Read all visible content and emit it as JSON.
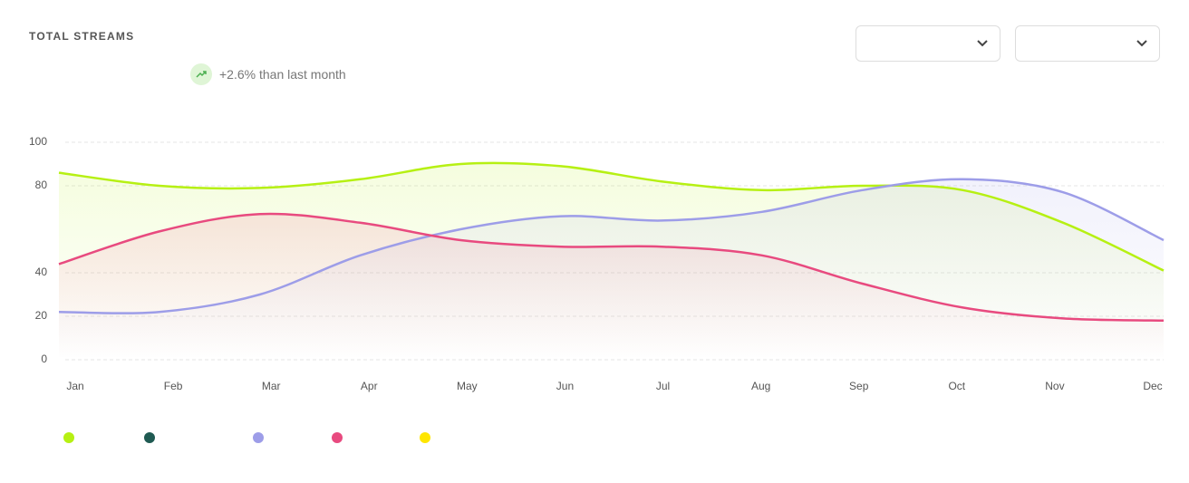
{
  "header": {
    "title": "TOTAL STREAMS",
    "trend": "+2.6% than last month"
  },
  "chart_data": {
    "type": "line",
    "categories": [
      "Jan",
      "Feb",
      "Mar",
      "Apr",
      "May",
      "Jun",
      "Jul",
      "Aug",
      "Sep",
      "Oct",
      "Nov",
      "Dec"
    ],
    "series": [
      {
        "color": "#b6f013",
        "values": [
          86,
          80,
          79,
          83,
          90,
          89,
          82,
          78,
          80,
          78,
          63,
          41
        ]
      },
      {
        "color": "#9d9de8",
        "values": [
          22,
          22,
          30,
          48,
          60,
          66,
          64,
          68,
          78,
          83,
          77,
          55
        ]
      },
      {
        "color": "#e84a7f",
        "values": [
          44,
          59,
          67,
          63,
          55,
          52,
          52,
          48,
          35,
          24,
          19,
          18
        ]
      }
    ],
    "legend_colors": [
      "#b6f013",
      "#1f5a52",
      "#9d9de8",
      "#e84a7f",
      "#ffe600"
    ],
    "ylim": [
      0,
      100
    ],
    "yticks": [
      100,
      80,
      40,
      20,
      0
    ],
    "grid": true
  }
}
